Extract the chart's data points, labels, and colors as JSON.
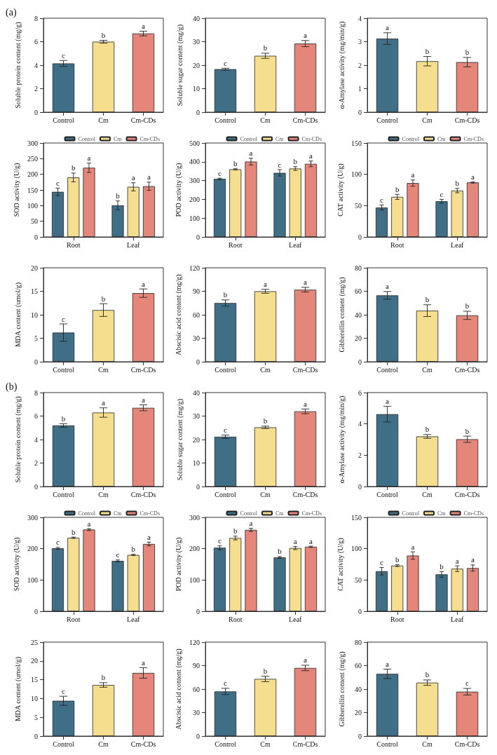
{
  "chart_data": [
    {
      "type": "bar",
      "ylabel": "Soluble protein content (mg/g)",
      "annotations": [
        "(a)"
      ],
      "categories": [
        "Control",
        "Cm",
        "Cm-CDs"
      ],
      "values": [
        4.15,
        6.0,
        6.7
      ],
      "errors": [
        0.25,
        0.12,
        0.2
      ],
      "value_labels": [
        "c",
        "b",
        "a"
      ],
      "colors": [
        "#3f6f87",
        "#f5df8f",
        "#e4877a"
      ],
      "ylim": [
        0,
        8
      ],
      "yticks": [
        0,
        2,
        4,
        6,
        8
      ],
      "grid": false
    },
    {
      "type": "bar",
      "ylabel": "Soluble sugar content (mg/g)",
      "categories": [
        "Control",
        "Cm",
        "Cm-CDs"
      ],
      "values": [
        18.3,
        24.0,
        29.2
      ],
      "errors": [
        0.4,
        1.1,
        1.3
      ],
      "value_labels": [
        "c",
        "b",
        "a"
      ],
      "colors": [
        "#3f6f87",
        "#f5df8f",
        "#e4877a"
      ],
      "ylim": [
        0,
        40
      ],
      "yticks": [
        0,
        10,
        20,
        30,
        40
      ],
      "grid": false
    },
    {
      "type": "bar",
      "ylabel": "α-Amylase activity (mg/min/g)",
      "categories": [
        "Control",
        "Cm",
        "Cm-CDs"
      ],
      "values": [
        3.13,
        2.17,
        2.13
      ],
      "errors": [
        0.25,
        0.2,
        0.2
      ],
      "value_labels": [
        "a",
        "b",
        "b"
      ],
      "colors": [
        "#3f6f87",
        "#f5df8f",
        "#e4877a"
      ],
      "ylim": [
        0,
        4
      ],
      "yticks": [
        0,
        1,
        2,
        3,
        4
      ],
      "grid": false
    },
    {
      "type": "bar",
      "ylabel": "SOD activity (U/g)",
      "categories": [
        "Root",
        "Leaf"
      ],
      "legend": "top right",
      "ylim": [
        0,
        300
      ],
      "yticks": [
        0,
        50,
        100,
        150,
        200,
        250,
        300
      ],
      "grid": false,
      "series": [
        {
          "name": "Control",
          "color": "#3f6f87",
          "values": [
            144,
            101
          ],
          "errors": [
            12,
            14
          ],
          "value_labels": [
            "c",
            "b"
          ]
        },
        {
          "name": "Cm",
          "color": "#f5df8f",
          "values": [
            190,
            160
          ],
          "errors": [
            14,
            13
          ],
          "value_labels": [
            "b",
            "a"
          ]
        },
        {
          "name": "Cm-CDs",
          "color": "#e4877a",
          "values": [
            221,
            162
          ],
          "errors": [
            15,
            13
          ],
          "value_labels": [
            "a",
            "a"
          ]
        }
      ]
    },
    {
      "type": "bar",
      "ylabel": "POD activity (U/g)",
      "categories": [
        "Root",
        "Leaf"
      ],
      "legend": "top right",
      "ylim": [
        0,
        500
      ],
      "yticks": [
        0,
        100,
        200,
        300,
        400,
        500
      ],
      "grid": false,
      "series": [
        {
          "name": "Control",
          "color": "#3f6f87",
          "values": [
            309,
            341
          ],
          "errors": [
            4,
            17
          ],
          "value_labels": [
            "c",
            "c"
          ]
        },
        {
          "name": "Cm",
          "color": "#f5df8f",
          "values": [
            360,
            364
          ],
          "errors": [
            3,
            10
          ],
          "value_labels": [
            "b",
            "b"
          ]
        },
        {
          "name": "Cm-CDs",
          "color": "#e4877a",
          "values": [
            401,
            389
          ],
          "errors": [
            18,
            15
          ],
          "value_labels": [
            "a",
            "a"
          ]
        }
      ]
    },
    {
      "type": "bar",
      "ylabel": "CAT activity (U/g)",
      "categories": [
        "Root",
        "Leaf"
      ],
      "legend": "top right",
      "ylim": [
        0,
        150
      ],
      "yticks": [
        0,
        50,
        100,
        150
      ],
      "grid": false,
      "series": [
        {
          "name": "Control",
          "color": "#3f6f87",
          "values": [
            47,
            57
          ],
          "errors": [
            4,
            3
          ],
          "value_labels": [
            "c",
            "c"
          ]
        },
        {
          "name": "Cm",
          "color": "#f5df8f",
          "values": [
            64,
            74
          ],
          "errors": [
            4,
            3.5
          ],
          "value_labels": [
            "b",
            "b"
          ]
        },
        {
          "name": "Cm-CDs",
          "color": "#e4877a",
          "values": [
            86,
            87
          ],
          "errors": [
            5,
            1
          ],
          "value_labels": [
            "a",
            "a"
          ]
        }
      ]
    },
    {
      "type": "bar",
      "ylabel": "MDA content (umol/g)",
      "categories": [
        "Control",
        "Cm",
        "Cm-CDs"
      ],
      "values": [
        6.2,
        11.0,
        14.6
      ],
      "errors": [
        1.85,
        1.35,
        0.9
      ],
      "value_labels": [
        "c",
        "b",
        "a"
      ],
      "colors": [
        "#3f6f87",
        "#f5df8f",
        "#e4877a"
      ],
      "ylim": [
        0,
        20
      ],
      "yticks": [
        0,
        5,
        10,
        15,
        20
      ],
      "grid": false
    },
    {
      "type": "bar",
      "ylabel": "Abscisic acid content (mg/g)",
      "categories": [
        "Control",
        "Cm",
        "Cm-CDs"
      ],
      "values": [
        75,
        90,
        92
      ],
      "errors": [
        4,
        2.5,
        3
      ],
      "value_labels": [
        "b",
        "a",
        "a"
      ],
      "colors": [
        "#3f6f87",
        "#f5df8f",
        "#e4877a"
      ],
      "ylim": [
        0,
        120
      ],
      "yticks": [
        0,
        30,
        60,
        90,
        120
      ],
      "grid": false
    },
    {
      "type": "bar",
      "ylabel": "Gibberellin content (mg/g)",
      "categories": [
        "Control",
        "Cm",
        "Cm-CDs"
      ],
      "values": [
        56.5,
        43.5,
        39.5
      ],
      "errors": [
        3.3,
        5,
        3.5
      ],
      "value_labels": [
        "a",
        "b",
        "b"
      ],
      "colors": [
        "#3f6f87",
        "#f5df8f",
        "#e4877a"
      ],
      "ylim": [
        0,
        80
      ],
      "yticks": [
        0,
        20,
        40,
        60,
        80
      ],
      "grid": false
    },
    {
      "type": "bar",
      "ylabel": "Soluble protein content (mg/g)",
      "annotations": [
        "(b)"
      ],
      "categories": [
        "Control",
        "Cm",
        "Cm-CDs"
      ],
      "values": [
        5.2,
        6.3,
        6.7
      ],
      "errors": [
        0.15,
        0.4,
        0.25
      ],
      "value_labels": [
        "b",
        "a",
        "a"
      ],
      "colors": [
        "#3f6f87",
        "#f5df8f",
        "#e4877a"
      ],
      "ylim": [
        0,
        8
      ],
      "yticks": [
        0,
        2,
        4,
        6,
        8
      ],
      "grid": false
    },
    {
      "type": "bar",
      "ylabel": "Soluble sugar content (mg/g)",
      "categories": [
        "Control",
        "Cm",
        "Cm-CDs"
      ],
      "values": [
        21.2,
        25.2,
        32.0
      ],
      "errors": [
        0.7,
        0.5,
        1.0
      ],
      "value_labels": [
        "c",
        "b",
        "a"
      ],
      "colors": [
        "#3f6f87",
        "#f5df8f",
        "#e4877a"
      ],
      "ylim": [
        0,
        40
      ],
      "yticks": [
        0,
        10,
        20,
        30,
        40
      ],
      "grid": false
    },
    {
      "type": "bar",
      "ylabel": "α-Amylase activity (mg/min/g)",
      "categories": [
        "Control",
        "Cm",
        "Cm-CDs"
      ],
      "values": [
        4.62,
        3.2,
        3.02
      ],
      "errors": [
        0.5,
        0.12,
        0.2
      ],
      "value_labels": [
        "a",
        "b",
        "b"
      ],
      "colors": [
        "#3f6f87",
        "#f5df8f",
        "#e4877a"
      ],
      "ylim": [
        0,
        6
      ],
      "yticks": [
        0,
        2,
        4,
        6
      ],
      "grid": false
    },
    {
      "type": "bar",
      "ylabel": "SOD activity (U/g)",
      "categories": [
        "Root",
        "Leaf"
      ],
      "legend": "top right",
      "ylim": [
        0,
        300
      ],
      "yticks": [
        0,
        100,
        200,
        300
      ],
      "grid": false,
      "series": [
        {
          "name": "Control",
          "color": "#3f6f87",
          "values": [
            201,
            161
          ],
          "errors": [
            3,
            3
          ],
          "value_labels": [
            "c",
            "c"
          ]
        },
        {
          "name": "Cm",
          "color": "#f5df8f",
          "values": [
            235,
            180
          ],
          "errors": [
            2,
            2
          ],
          "value_labels": [
            "b",
            "b"
          ]
        },
        {
          "name": "Cm-CDs",
          "color": "#e4877a",
          "values": [
            261,
            215
          ],
          "errors": [
            3,
            6
          ],
          "value_labels": [
            "a",
            "a"
          ]
        }
      ]
    },
    {
      "type": "bar",
      "ylabel": "POD activity (U/g)",
      "categories": [
        "Root",
        "Leaf"
      ],
      "legend": "top right",
      "ylim": [
        0,
        300
      ],
      "yticks": [
        0,
        100,
        200,
        300
      ],
      "grid": false,
      "series": [
        {
          "name": "Control",
          "color": "#3f6f87",
          "values": [
            203,
            172
          ],
          "errors": [
            6,
            3
          ],
          "value_labels": [
            "c",
            "b"
          ]
        },
        {
          "name": "Cm",
          "color": "#f5df8f",
          "values": [
            234,
            202
          ],
          "errors": [
            6,
            5
          ],
          "value_labels": [
            "b",
            "a"
          ]
        },
        {
          "name": "Cm-CDs",
          "color": "#e4877a",
          "values": [
            260,
            206
          ],
          "errors": [
            5,
            2
          ],
          "value_labels": [
            "a",
            "a"
          ]
        }
      ]
    },
    {
      "type": "bar",
      "ylabel": "CAT activity (U/g)",
      "categories": [
        "Root",
        "Leaf"
      ],
      "legend": "top right",
      "ylim": [
        0,
        150
      ],
      "yticks": [
        0,
        50,
        100,
        150
      ],
      "grid": false,
      "series": [
        {
          "name": "Control",
          "color": "#3f6f87",
          "values": [
            64,
            59
          ],
          "errors": [
            6,
            4.5
          ],
          "value_labels": [
            "c",
            "b"
          ]
        },
        {
          "name": "Cm",
          "color": "#f5df8f",
          "values": [
            73,
            68
          ],
          "errors": [
            1.5,
            4.5
          ],
          "value_labels": [
            "b",
            "a"
          ]
        },
        {
          "name": "Cm-CDs",
          "color": "#e4877a",
          "values": [
            89,
            69
          ],
          "errors": [
            6,
            5
          ],
          "value_labels": [
            "a",
            "a"
          ]
        }
      ]
    },
    {
      "type": "bar",
      "ylabel": "MDA content (umol/g)",
      "categories": [
        "Control",
        "Cm",
        "Cm-CDs"
      ],
      "values": [
        9.4,
        13.6,
        16.8
      ],
      "errors": [
        1.2,
        0.6,
        1.4
      ],
      "value_labels": [
        "c",
        "b",
        "a"
      ],
      "colors": [
        "#3f6f87",
        "#f5df8f",
        "#e4877a"
      ],
      "ylim": [
        0,
        25
      ],
      "yticks": [
        0,
        5,
        10,
        15,
        20,
        25
      ],
      "grid": false
    },
    {
      "type": "bar",
      "ylabel": "Abscisic acid content (mg/g)",
      "categories": [
        "Control",
        "Cm",
        "Cm-CDs"
      ],
      "values": [
        57,
        73,
        87
      ],
      "errors": [
        4,
        3.5,
        3.5
      ],
      "value_labels": [
        "c",
        "b",
        "a"
      ],
      "colors": [
        "#3f6f87",
        "#f5df8f",
        "#e4877a"
      ],
      "ylim": [
        0,
        120
      ],
      "yticks": [
        0,
        30,
        60,
        90,
        120
      ],
      "grid": false
    },
    {
      "type": "bar",
      "ylabel": "Gibberellin content (mg/g)",
      "categories": [
        "Control",
        "Cm",
        "Cm-CDs"
      ],
      "values": [
        53,
        45.5,
        37.8
      ],
      "errors": [
        4,
        2.3,
        2.8
      ],
      "value_labels": [
        "a",
        "b",
        "c"
      ],
      "colors": [
        "#3f6f87",
        "#f5df8f",
        "#e4877a"
      ],
      "ylim": [
        0,
        80
      ],
      "yticks": [
        0,
        20,
        40,
        60,
        80
      ],
      "grid": false
    }
  ]
}
